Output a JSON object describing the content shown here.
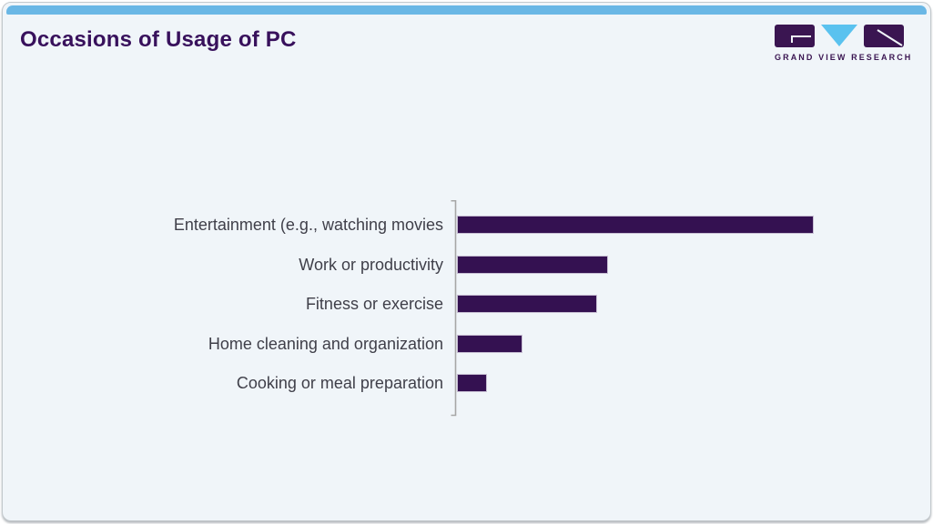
{
  "slide": {
    "title": "Occasions of Usage of PC",
    "title_color": "#38115c",
    "background_color": "#f0f5f9",
    "accent_bar_color": "#6ab7e5",
    "brand": {
      "name": "GRAND VIEW RESEARCH",
      "logo_purple": "#3a1551",
      "logo_blue": "#5ac2ef"
    }
  },
  "chart_data": {
    "type": "bar",
    "orientation": "horizontal",
    "title": "Occasions of Usage of PC",
    "categories": [
      "Entertainment (e.g., watching movies",
      "Work or productivity",
      "Fitness or exercise",
      "Home cleaning and organization",
      "Cooking or meal preparation"
    ],
    "values": [
      100,
      42,
      39,
      18,
      8
    ],
    "values_note": "Relative bar lengths (longest bar = 100); chart displays no numeric axis, gridlines, or data labels",
    "bar_color": "#341151",
    "axis_color": "#a6a6a6",
    "xlabel": "",
    "ylabel": "",
    "grid": false,
    "legend": false
  }
}
